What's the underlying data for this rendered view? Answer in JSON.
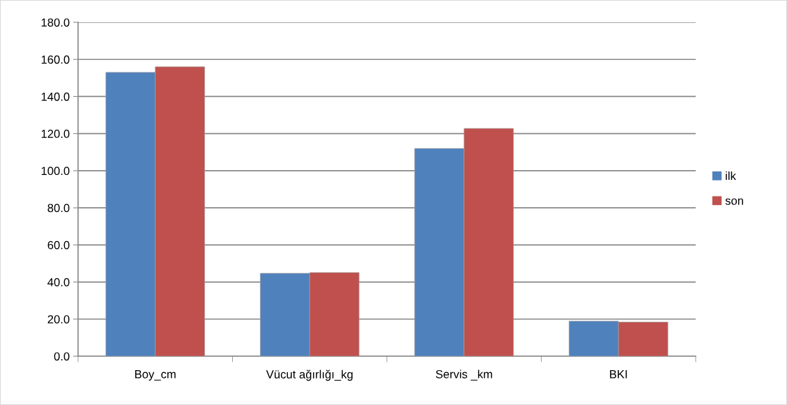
{
  "chart_data": {
    "type": "bar",
    "categories": [
      "Boy_cm",
      "Vücut ağırlığı_kg",
      "Servis _km",
      "BKI"
    ],
    "series": [
      {
        "name": "ilk",
        "color": "#4f81bd",
        "values": [
          153.0,
          44.7,
          112.0,
          18.9
        ]
      },
      {
        "name": "son",
        "color": "#c0504d",
        "values": [
          156.0,
          45.1,
          122.8,
          18.4
        ]
      }
    ],
    "ylim": [
      0,
      180
    ],
    "yticks": [
      {
        "value": 0,
        "label": "0.0"
      },
      {
        "value": 20,
        "label": "20.0"
      },
      {
        "value": 40,
        "label": "40.0"
      },
      {
        "value": 60,
        "label": "60.0"
      },
      {
        "value": 80,
        "label": "80.0"
      },
      {
        "value": 100,
        "label": "100.0"
      },
      {
        "value": 120,
        "label": "120.0"
      },
      {
        "value": 140,
        "label": "140.0"
      },
      {
        "value": 160,
        "label": "160.0"
      },
      {
        "value": 180,
        "label": "180.0"
      }
    ],
    "grid": "y",
    "legend": "right"
  }
}
